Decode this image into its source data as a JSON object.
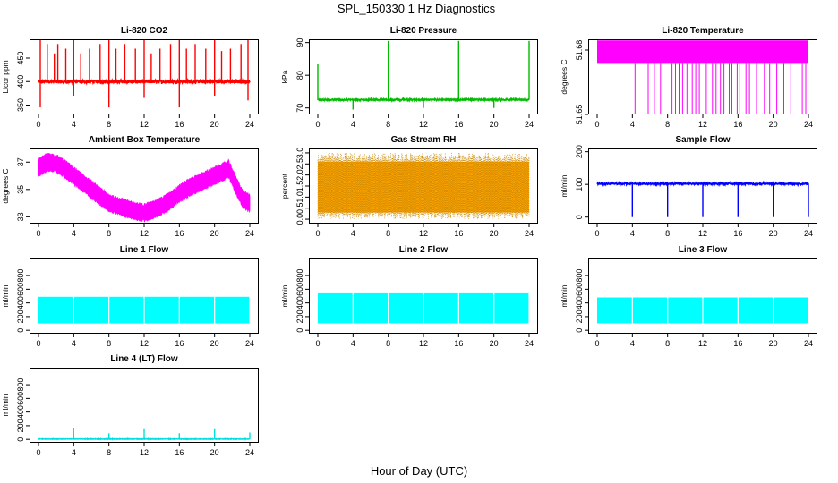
{
  "figure": {
    "title": "SPL_150330  1 Hz Diagnostics",
    "xlabel": "Hour of Day (UTC)"
  },
  "chart_data": [
    {
      "type": "line",
      "title": "Li-820 CO2",
      "ylabel": "Licor ppm",
      "color": "#ff0000",
      "xlim": [
        0,
        24
      ],
      "ylim": [
        330,
        490
      ],
      "xticks": [
        0,
        4,
        8,
        12,
        16,
        20,
        24
      ],
      "yticks": [
        350,
        400,
        450
      ],
      "baseline": 400,
      "noise": 4,
      "spikes": [
        [
          0.2,
          490
        ],
        [
          0.2,
          345
        ],
        [
          1.0,
          480
        ],
        [
          1.8,
          460
        ],
        [
          2.2,
          480
        ],
        [
          3.1,
          470
        ],
        [
          4.0,
          490
        ],
        [
          4.0,
          370
        ],
        [
          4.8,
          460
        ],
        [
          5.8,
          470
        ],
        [
          7.0,
          480
        ],
        [
          8.0,
          490
        ],
        [
          8.0,
          345
        ],
        [
          8.8,
          470
        ],
        [
          9.8,
          480
        ],
        [
          11.0,
          470
        ],
        [
          12.0,
          490
        ],
        [
          12.0,
          365
        ],
        [
          12.8,
          460
        ],
        [
          13.8,
          470
        ],
        [
          15.0,
          480
        ],
        [
          16.0,
          490
        ],
        [
          16.0,
          345
        ],
        [
          16.8,
          470
        ],
        [
          17.8,
          480
        ],
        [
          19.0,
          470
        ],
        [
          20.0,
          490
        ],
        [
          20.0,
          370
        ],
        [
          20.8,
          465
        ],
        [
          21.8,
          470
        ],
        [
          23.0,
          480
        ],
        [
          23.8,
          490
        ],
        [
          23.8,
          360
        ]
      ]
    },
    {
      "type": "line",
      "title": "Li-820 Pressure",
      "ylabel": "kPa",
      "color": "#00bb00",
      "xlim": [
        0,
        24
      ],
      "ylim": [
        68,
        91
      ],
      "xticks": [
        0,
        4,
        8,
        12,
        16,
        20,
        24
      ],
      "yticks": [
        70,
        80,
        90
      ],
      "baseline": 72.5,
      "noise": 0.2,
      "spikes": [
        [
          0.0,
          83.5
        ],
        [
          4.0,
          69.5
        ],
        [
          8.0,
          90.5
        ],
        [
          12.0,
          70
        ],
        [
          16.0,
          90.5
        ],
        [
          20.0,
          70
        ],
        [
          24.0,
          90.5
        ]
      ]
    },
    {
      "type": "area",
      "title": "Li-820 Temperature",
      "ylabel": "degrees C",
      "color": "#ff00ff",
      "xlim": [
        0,
        24
      ],
      "ylim": [
        51.65,
        51.685
      ],
      "xticks": [
        0,
        4,
        8,
        12,
        16,
        20,
        24
      ],
      "yticks": [
        51.65,
        51.68
      ],
      "ytick_labels": [
        "51.65",
        "51.68"
      ],
      "band": [
        51.674,
        51.6845
      ],
      "drops": [
        4.3,
        5.8,
        6.5,
        7.2,
        8.5,
        8.9,
        9.3,
        9.7,
        10.2,
        10.8,
        11.2,
        11.6,
        12.4,
        13.1,
        13.5,
        14.0,
        14.4,
        15.0,
        15.3,
        15.9,
        16.2,
        16.9,
        17.3,
        18.1,
        19.0,
        19.6,
        20.4,
        21.2,
        22.0,
        23.3,
        23.7
      ],
      "drop_floor": 51.65
    },
    {
      "type": "area",
      "title": "Ambient Box Temperature",
      "ylabel": "degrees C",
      "color": "#ff00ff",
      "xlim": [
        0,
        24
      ],
      "ylim": [
        32.5,
        38
      ],
      "xticks": [
        0,
        4,
        8,
        12,
        16,
        20,
        24
      ],
      "yticks": [
        33,
        35,
        37
      ],
      "curve": [
        [
          0,
          36.6
        ],
        [
          1,
          37.0
        ],
        [
          2,
          36.9
        ],
        [
          3,
          36.5
        ],
        [
          4,
          36.0
        ],
        [
          5,
          35.5
        ],
        [
          6,
          35.0
        ],
        [
          7,
          34.5
        ],
        [
          8,
          34.0
        ],
        [
          9,
          33.8
        ],
        [
          10,
          33.6
        ],
        [
          11,
          33.4
        ],
        [
          12,
          33.3
        ],
        [
          13,
          33.5
        ],
        [
          14,
          33.8
        ],
        [
          15,
          34.2
        ],
        [
          16,
          34.7
        ],
        [
          17,
          35.1
        ],
        [
          18,
          35.4
        ],
        [
          19,
          35.7
        ],
        [
          20,
          36.0
        ],
        [
          21,
          36.3
        ],
        [
          21.6,
          36.5
        ],
        [
          22.5,
          35.2
        ],
        [
          23.2,
          34.3
        ],
        [
          24,
          34.0
        ]
      ],
      "halfwidth": 0.55
    },
    {
      "type": "area",
      "title": "Gas Stream RH",
      "ylabel": "percent",
      "color": "#ffa500",
      "edge_color": "#cc8800",
      "xlim": [
        0,
        24
      ],
      "ylim": [
        -0.2,
        3.2
      ],
      "xticks": [
        0,
        4,
        8,
        12,
        16,
        20,
        24
      ],
      "yticks": [
        0.0,
        0.5,
        1.0,
        1.5,
        2.0,
        2.5,
        3.0
      ],
      "ytick_labels": [
        "0.0",
        "0.5",
        "1.0",
        "1.5",
        "2.0",
        "2.5",
        "3.0"
      ],
      "band": [
        0.3,
        2.6
      ],
      "extremes": [
        0.0,
        3.0
      ]
    },
    {
      "type": "line",
      "title": "Sample Flow",
      "ylabel": "ml/min",
      "color": "#0000ff",
      "xlim": [
        0,
        24
      ],
      "ylim": [
        -20,
        210
      ],
      "xticks": [
        0,
        4,
        8,
        12,
        16,
        20,
        24
      ],
      "yticks": [
        0,
        100,
        200
      ],
      "baseline": 102,
      "noise": 3,
      "spikes": [
        [
          4.0,
          0
        ],
        [
          8.0,
          0
        ],
        [
          12.0,
          0
        ],
        [
          16.0,
          0
        ],
        [
          20.0,
          0
        ],
        [
          24.0,
          0
        ]
      ]
    },
    {
      "type": "area",
      "title": "Line 1 Flow",
      "ylabel": "ml/min",
      "color": "#00ffff",
      "xlim": [
        0,
        24
      ],
      "ylim": [
        -50,
        1050
      ],
      "xticks": [
        0,
        4,
        8,
        12,
        16,
        20,
        24
      ],
      "yticks": [
        0,
        200,
        400,
        600,
        800
      ],
      "band": [
        100,
        490
      ],
      "gaps": [
        4.0,
        8.0,
        12.0,
        16.0,
        20.0,
        24.0
      ]
    },
    {
      "type": "area",
      "title": "Line 2 Flow",
      "ylabel": "ml/min",
      "color": "#00ffff",
      "xlim": [
        0,
        24
      ],
      "ylim": [
        -50,
        1050
      ],
      "xticks": [
        0,
        4,
        8,
        12,
        16,
        20,
        24
      ],
      "yticks": [
        0,
        200,
        400,
        600,
        800
      ],
      "band": [
        100,
        540
      ],
      "gaps": [
        4.0,
        8.0,
        12.0,
        16.0,
        20.0,
        24.0
      ]
    },
    {
      "type": "area",
      "title": "Line 3 Flow",
      "ylabel": "ml/min",
      "color": "#00ffff",
      "xlim": [
        0,
        24
      ],
      "ylim": [
        -50,
        1050
      ],
      "xticks": [
        0,
        4,
        8,
        12,
        16,
        20,
        24
      ],
      "yticks": [
        0,
        200,
        400,
        600,
        800
      ],
      "band": [
        100,
        480
      ],
      "gaps": [
        4.0,
        8.0,
        12.0,
        16.0,
        20.0,
        24.0
      ]
    },
    {
      "type": "line",
      "title": "Line 4 (LT) Flow",
      "ylabel": "ml/min",
      "color": "#00e0e0",
      "xlim": [
        0,
        24
      ],
      "ylim": [
        -50,
        1050
      ],
      "xticks": [
        0,
        4,
        8,
        12,
        16,
        20,
        24
      ],
      "yticks": [
        0,
        200,
        400,
        600,
        800
      ],
      "baseline": 5,
      "noise": 3,
      "spikes": [
        [
          4.0,
          160
        ],
        [
          8.0,
          90
        ],
        [
          12.0,
          150
        ],
        [
          16.0,
          90
        ],
        [
          20.0,
          150
        ],
        [
          24.0,
          100
        ]
      ]
    }
  ]
}
